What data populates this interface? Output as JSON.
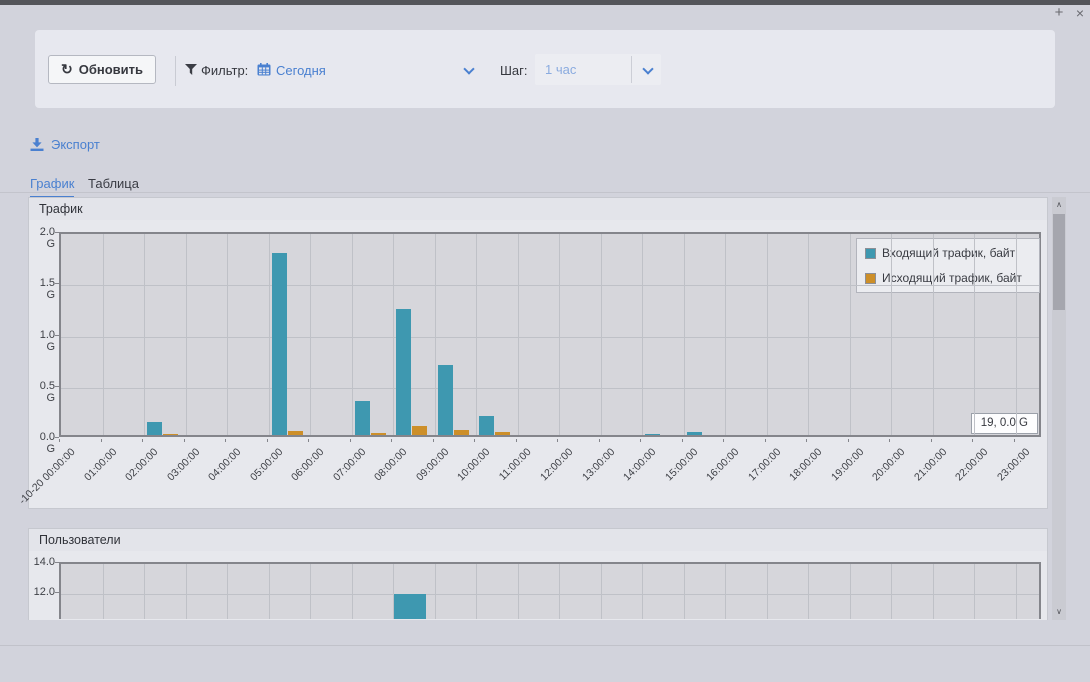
{
  "window": {
    "add": "+",
    "close": "×"
  },
  "toolbar": {
    "refresh": "Обновить",
    "filter_label": "Фильтр:",
    "filter_value": "Сегодня",
    "step_label": "Шаг:",
    "step_value": "1 час"
  },
  "export_label": "Экспорт",
  "tabs": {
    "chart": "График",
    "table": "Таблица"
  },
  "tooltip": "19, 0.0 G",
  "icons": {
    "scroll_up": "∧",
    "scroll_down": "∨",
    "refresh": "↻"
  },
  "colors": {
    "accent_blue": "#4a80d0",
    "incoming_teal": "#3e98b0",
    "outgoing_orange": "#cd8f29",
    "plot_bg": "#d6d6db"
  },
  "chart_data": [
    {
      "type": "bar",
      "title": "Трафик",
      "categories": [
        "-10-20 00:00:00",
        "01:00:00",
        "02:00:00",
        "03:00:00",
        "04:00:00",
        "05:00:00",
        "06:00:00",
        "07:00:00",
        "08:00:00",
        "09:00:00",
        "10:00:00",
        "11:00:00",
        "12:00:00",
        "13:00:00",
        "14:00:00",
        "15:00:00",
        "16:00:00",
        "17:00:00",
        "18:00:00",
        "19:00:00",
        "20:00:00",
        "21:00:00",
        "22:00:00",
        "23:00:00"
      ],
      "series": [
        {
          "name": "Входящий трафик, байт",
          "color": "#3e98b0",
          "values": [
            0,
            0,
            0.13,
            0,
            0,
            1.78,
            0,
            0.33,
            1.23,
            0.68,
            0.19,
            0,
            0,
            0,
            0.01,
            0.03,
            0,
            0,
            0,
            0,
            0,
            0,
            0,
            0
          ]
        },
        {
          "name": "Исходящий трафик, байт",
          "color": "#cd8f29",
          "values": [
            0,
            0,
            0.01,
            0,
            0,
            0.04,
            0,
            0.02,
            0.09,
            0.05,
            0.03,
            0,
            0,
            0,
            0,
            0,
            0,
            0,
            0,
            0,
            0,
            0,
            0,
            0
          ]
        }
      ],
      "ylim": [
        0,
        2.0
      ],
      "yticks": [
        {
          "label": "2.0 G",
          "value": 2.0
        },
        {
          "label": "1.5 G",
          "value": 1.5
        },
        {
          "label": "1.0 G",
          "value": 1.0
        },
        {
          "label": "0.5 G",
          "value": 0.5
        },
        {
          "label": "0.0 G",
          "value": 0.0
        }
      ],
      "grid": true,
      "legend_position": "top-right",
      "hover_readout": "19, 0.0 G"
    },
    {
      "type": "bar",
      "title": "Пользователи",
      "color": "#3e98b0",
      "values": [
        0,
        0,
        0,
        0,
        0,
        0,
        0,
        0,
        12,
        0,
        0,
        0,
        0,
        0,
        0,
        0,
        0,
        0,
        0,
        0,
        0,
        0,
        0,
        0
      ],
      "yticks": [
        {
          "label": "14.0",
          "value": 14
        },
        {
          "label": "12.0",
          "value": 12
        }
      ],
      "ylim_visible": [
        10.5,
        14
      ],
      "grid": true
    }
  ]
}
